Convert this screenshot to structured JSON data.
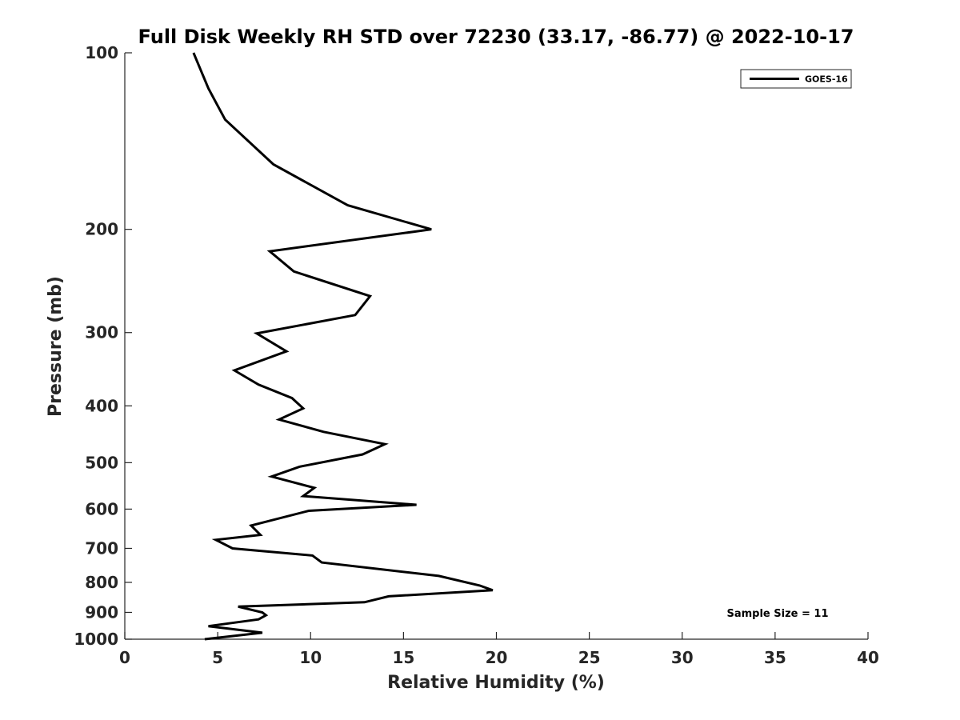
{
  "chart_data": {
    "type": "line",
    "title": "Full Disk Weekly RH STD over 72230 (33.17, -86.77) @ 2022-10-17",
    "xlabel": "Relative Humidity (%)",
    "ylabel": "Pressure (mb)",
    "xlim": [
      0,
      40
    ],
    "ylim": [
      100,
      1000
    ],
    "yscale": "log",
    "yreversed": true,
    "xticks": [
      0,
      5,
      10,
      15,
      20,
      25,
      30,
      35,
      40
    ],
    "xtick_labels": [
      "0",
      "5",
      "10",
      "15",
      "20",
      "25",
      "30",
      "35",
      "40"
    ],
    "yticks": [
      100,
      200,
      300,
      400,
      500,
      600,
      700,
      800,
      900,
      1000
    ],
    "ytick_labels": [
      "100",
      "200",
      "300",
      "400",
      "500",
      "600",
      "700",
      "800",
      "900",
      "1000"
    ],
    "grid": false,
    "legend_position": "top-right",
    "annotation": "Sample Size = 11",
    "colors": {
      "series": "#000000",
      "axes": "#262626"
    },
    "series": [
      {
        "name": "GOES-16",
        "points": [
          [
            3.7,
            100
          ],
          [
            4.5,
            115
          ],
          [
            5.4,
            130
          ],
          [
            8.0,
            155
          ],
          [
            12.0,
            182
          ],
          [
            16.5,
            200
          ],
          [
            7.8,
            218
          ],
          [
            9.1,
            236
          ],
          [
            13.2,
            260
          ],
          [
            12.4,
            280
          ],
          [
            7.1,
            301
          ],
          [
            8.7,
            323
          ],
          [
            5.9,
            348
          ],
          [
            7.2,
            368
          ],
          [
            9.0,
            388
          ],
          [
            9.6,
            404
          ],
          [
            8.3,
            422
          ],
          [
            10.7,
            443
          ],
          [
            14.0,
            465
          ],
          [
            12.8,
            484
          ],
          [
            9.4,
            508
          ],
          [
            7.9,
            528
          ],
          [
            10.2,
            552
          ],
          [
            9.6,
            570
          ],
          [
            15.7,
            590
          ],
          [
            9.9,
            604
          ],
          [
            6.8,
            640
          ],
          [
            7.3,
            664
          ],
          [
            4.9,
            677
          ],
          [
            5.8,
            700
          ],
          [
            10.1,
            720
          ],
          [
            10.6,
            740
          ],
          [
            16.9,
            780
          ],
          [
            19.1,
            810
          ],
          [
            19.8,
            825
          ],
          [
            14.2,
            845
          ],
          [
            12.9,
            865
          ],
          [
            6.1,
            880
          ],
          [
            7.4,
            900
          ],
          [
            7.6,
            910
          ],
          [
            7.2,
            925
          ],
          [
            4.5,
            950
          ],
          [
            7.4,
            975
          ],
          [
            4.3,
            1000
          ]
        ]
      }
    ]
  }
}
